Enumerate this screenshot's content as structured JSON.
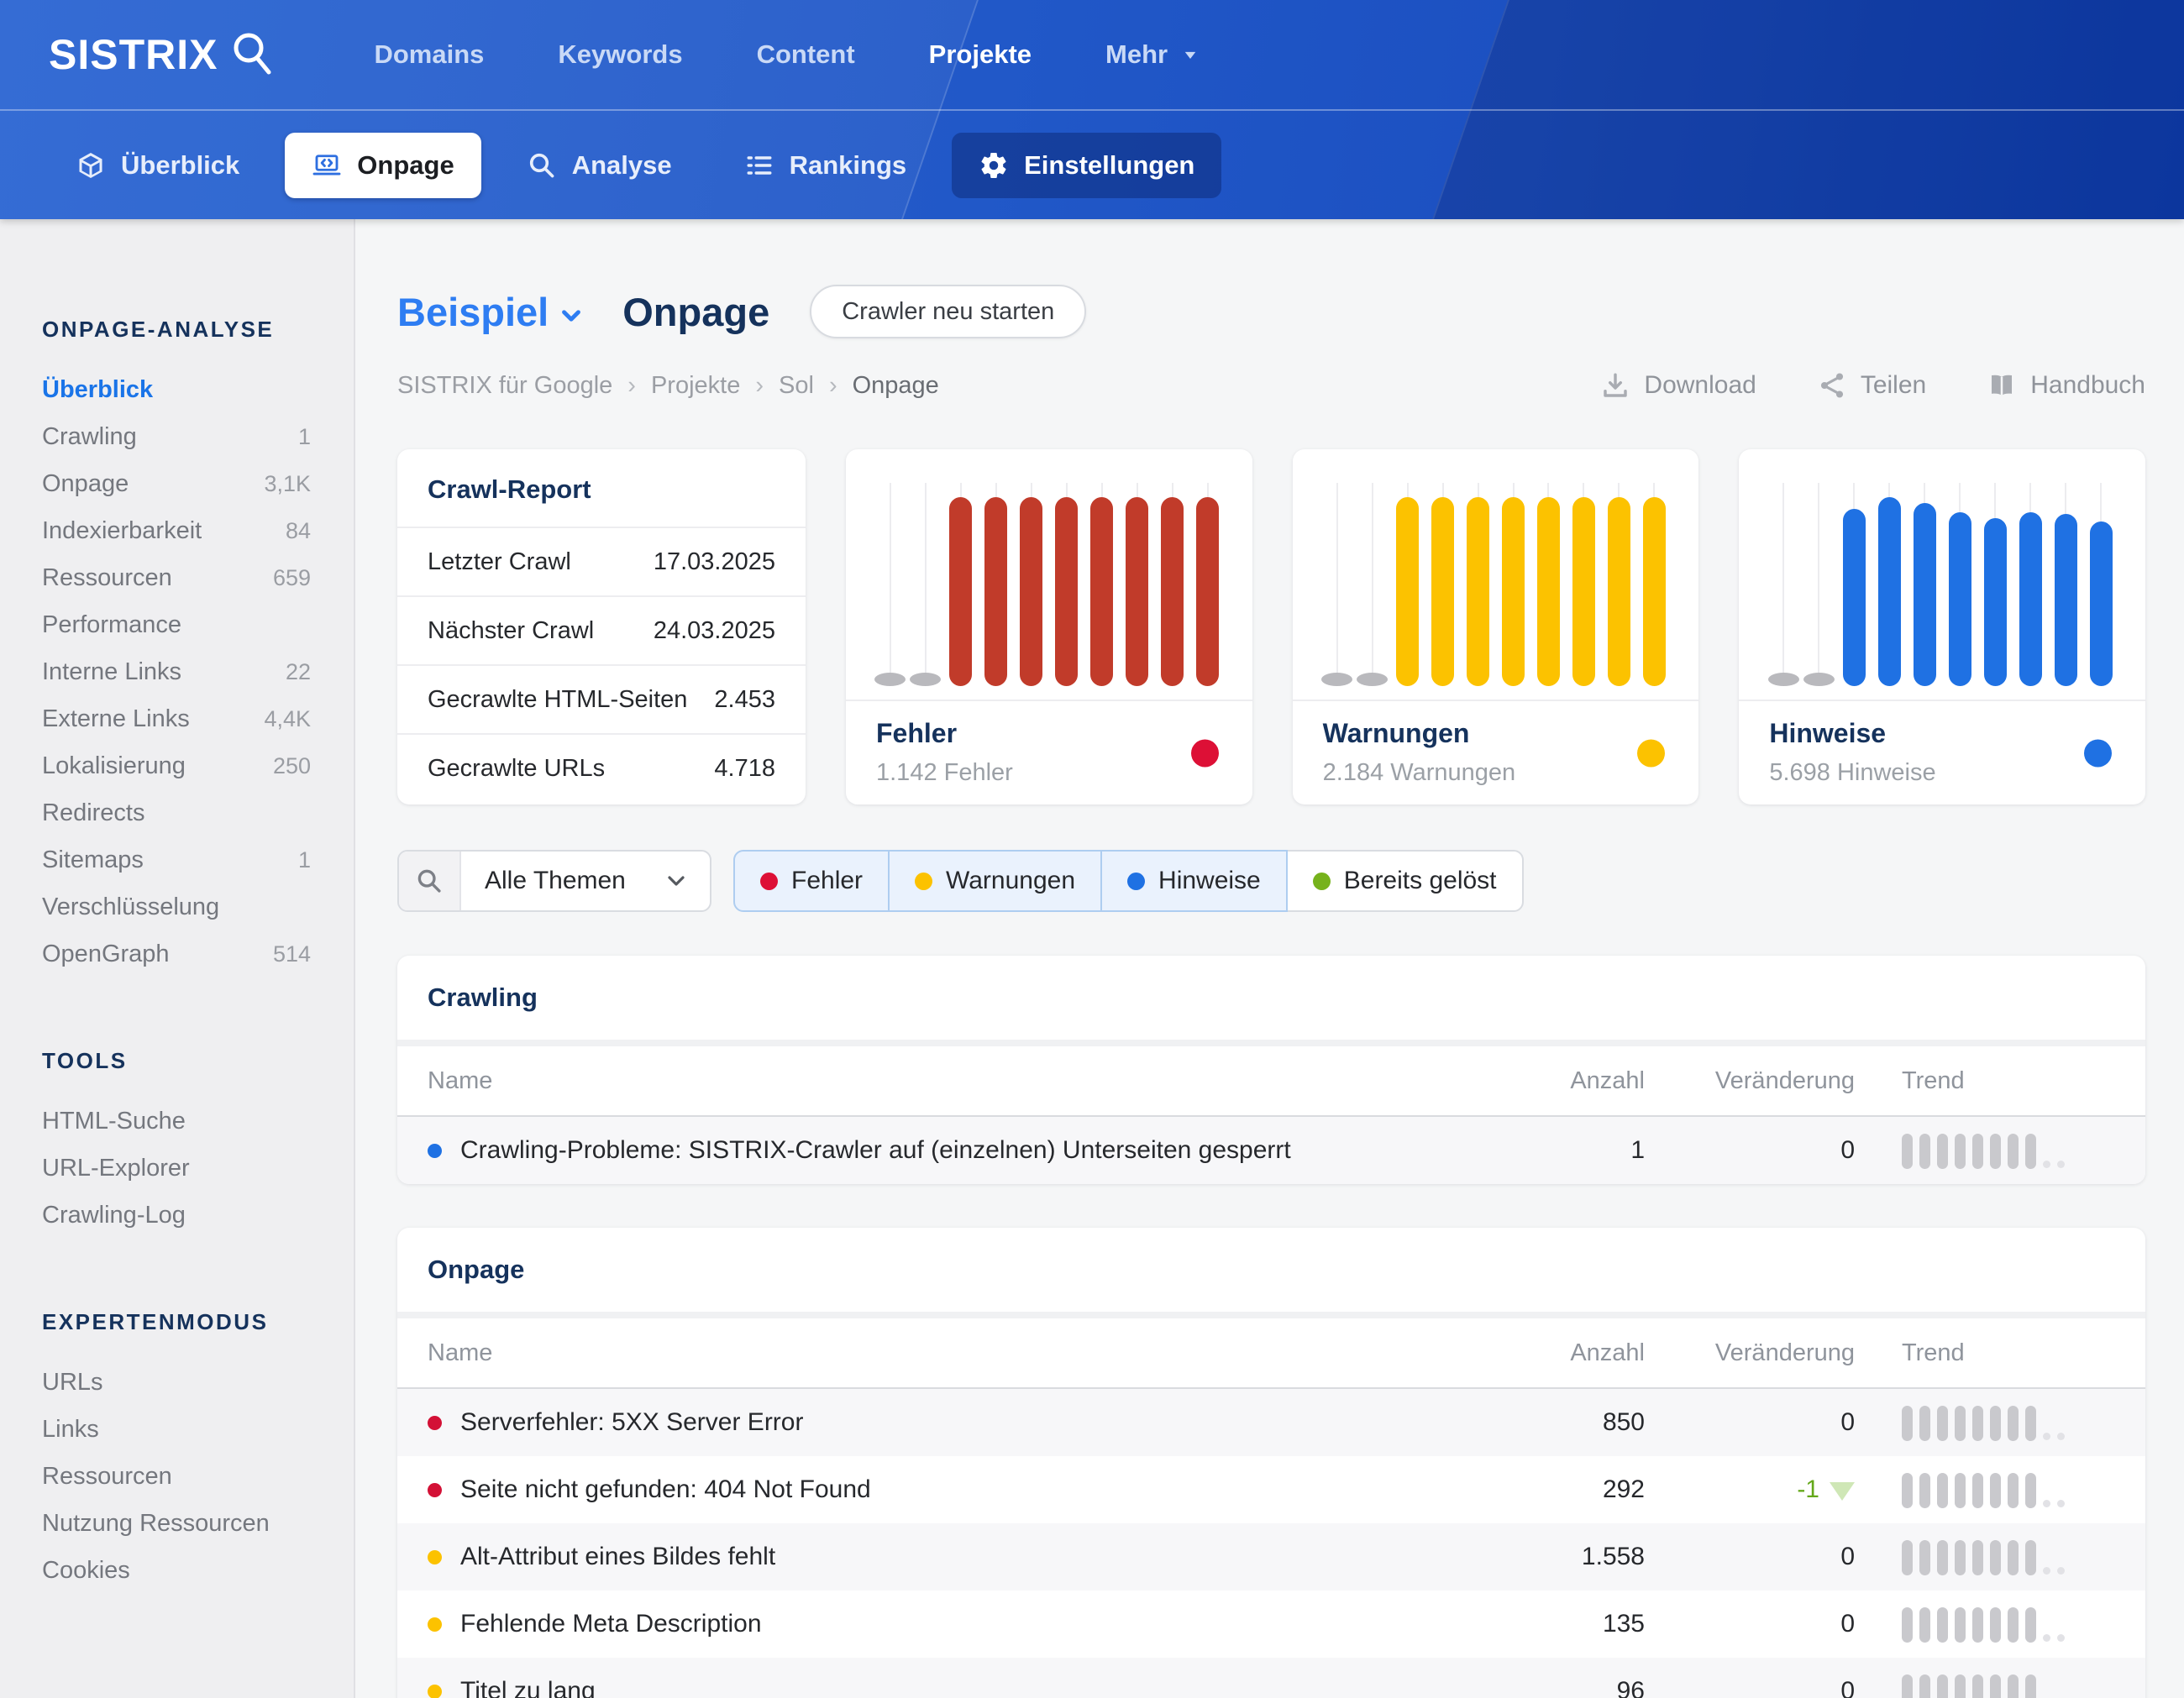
{
  "topnav": {
    "logo": "SISTRIX",
    "items": [
      {
        "label": "Domains",
        "active": false
      },
      {
        "label": "Keywords",
        "active": false
      },
      {
        "label": "Content",
        "active": false
      },
      {
        "label": "Projekte",
        "active": true
      },
      {
        "label": "Mehr",
        "active": false,
        "caret": true
      }
    ]
  },
  "subnav": {
    "items": [
      {
        "label": "Überblick",
        "icon": "box-icon",
        "style": "plain"
      },
      {
        "label": "Onpage",
        "icon": "laptop-code-icon",
        "style": "active-light"
      },
      {
        "label": "Analyse",
        "icon": "search-icon",
        "style": "plain"
      },
      {
        "label": "Rankings",
        "icon": "ranking-list-icon",
        "style": "plain"
      },
      {
        "label": "Einstellungen",
        "icon": "gear-icon",
        "style": "active-dark"
      }
    ]
  },
  "sidebar": {
    "sections": [
      {
        "title": "ONPAGE-ANALYSE",
        "items": [
          {
            "label": "Überblick",
            "count": "",
            "active": true
          },
          {
            "label": "Crawling",
            "count": "1",
            "active": false
          },
          {
            "label": "Onpage",
            "count": "3,1K",
            "active": false
          },
          {
            "label": "Indexierbarkeit",
            "count": "84",
            "active": false
          },
          {
            "label": "Ressourcen",
            "count": "659",
            "active": false
          },
          {
            "label": "Performance",
            "count": "",
            "active": false
          },
          {
            "label": "Interne Links",
            "count": "22",
            "active": false
          },
          {
            "label": "Externe Links",
            "count": "4,4K",
            "active": false
          },
          {
            "label": "Lokalisierung",
            "count": "250",
            "active": false
          },
          {
            "label": "Redirects",
            "count": "",
            "active": false
          },
          {
            "label": "Sitemaps",
            "count": "1",
            "active": false
          },
          {
            "label": "Verschlüsselung",
            "count": "",
            "active": false
          },
          {
            "label": "OpenGraph",
            "count": "514",
            "active": false
          }
        ]
      },
      {
        "title": "TOOLS",
        "items": [
          {
            "label": "HTML-Suche",
            "count": "",
            "active": false
          },
          {
            "label": "URL-Explorer",
            "count": "",
            "active": false
          },
          {
            "label": "Crawling-Log",
            "count": "",
            "active": false
          }
        ]
      },
      {
        "title": "EXPERTENMODUS",
        "items": [
          {
            "label": "URLs",
            "count": "",
            "active": false
          },
          {
            "label": "Links",
            "count": "",
            "active": false
          },
          {
            "label": "Ressourcen",
            "count": "",
            "active": false
          },
          {
            "label": "Nutzung Ressourcen",
            "count": "",
            "active": false
          },
          {
            "label": "Cookies",
            "count": "",
            "active": false
          }
        ]
      }
    ]
  },
  "page": {
    "project": "Beispiel",
    "title": "Onpage",
    "restart_button": "Crawler neu starten",
    "breadcrumb": [
      "SISTRIX für Google",
      "Projekte",
      "Sol",
      "Onpage"
    ],
    "actions": [
      {
        "label": "Download",
        "icon": "download-icon"
      },
      {
        "label": "Teilen",
        "icon": "share-icon"
      },
      {
        "label": "Handbuch",
        "icon": "book-icon"
      }
    ]
  },
  "crawl_report": {
    "title": "Crawl-Report",
    "rows": [
      {
        "label": "Letzter Crawl",
        "value": "17.03.2025"
      },
      {
        "label": "Nächster Crawl",
        "value": "24.03.2025"
      },
      {
        "label": "Gecrawlte HTML-Seiten",
        "value": "2.453"
      },
      {
        "label": "Gecrawlte URLs",
        "value": "4.718"
      }
    ]
  },
  "stat_cards": [
    {
      "title": "Fehler",
      "subtitle": "1.142 Fehler",
      "bar_color": "#c13b2a",
      "dot_color": "#dd1036",
      "slots": [
        {
          "type": "dot"
        },
        {
          "type": "dot"
        },
        {
          "type": "bar",
          "h": 100
        },
        {
          "type": "bar",
          "h": 100
        },
        {
          "type": "bar",
          "h": 100
        },
        {
          "type": "bar",
          "h": 100
        },
        {
          "type": "bar",
          "h": 100
        },
        {
          "type": "bar",
          "h": 100
        },
        {
          "type": "bar",
          "h": 100
        },
        {
          "type": "bar",
          "h": 100
        }
      ]
    },
    {
      "title": "Warnungen",
      "subtitle": "2.184 Warnungen",
      "bar_color": "#fcc200",
      "dot_color": "#fcc200",
      "slots": [
        {
          "type": "dot"
        },
        {
          "type": "dot"
        },
        {
          "type": "bar",
          "h": 100
        },
        {
          "type": "bar",
          "h": 100
        },
        {
          "type": "bar",
          "h": 100
        },
        {
          "type": "bar",
          "h": 100
        },
        {
          "type": "bar",
          "h": 100
        },
        {
          "type": "bar",
          "h": 100
        },
        {
          "type": "bar",
          "h": 100
        },
        {
          "type": "bar",
          "h": 100
        }
      ]
    },
    {
      "title": "Hinweise",
      "subtitle": "5.698 Hinweise",
      "bar_color": "#1f71e3",
      "dot_color": "#1f71e3",
      "slots": [
        {
          "type": "dot"
        },
        {
          "type": "dot"
        },
        {
          "type": "bar",
          "h": 94
        },
        {
          "type": "bar",
          "h": 100
        },
        {
          "type": "bar",
          "h": 97
        },
        {
          "type": "bar",
          "h": 92
        },
        {
          "type": "bar",
          "h": 89
        },
        {
          "type": "bar",
          "h": 92
        },
        {
          "type": "bar",
          "h": 91
        },
        {
          "type": "bar",
          "h": 87
        }
      ]
    }
  ],
  "filter": {
    "select": {
      "label": "Alle Themen",
      "icon": "search-icon"
    },
    "chips": [
      {
        "label": "Fehler",
        "color": "#dd1036",
        "selected": true
      },
      {
        "label": "Warnungen",
        "color": "#fcc200",
        "selected": true
      },
      {
        "label": "Hinweise",
        "color": "#1f71e3",
        "selected": true
      },
      {
        "label": "Bereits gelöst",
        "color": "#76b21c",
        "selected": false
      }
    ]
  },
  "sections": [
    {
      "title": "Crawling",
      "columns": [
        "Name",
        "Anzahl",
        "Veränderung",
        "Trend"
      ],
      "rows": [
        {
          "dot": "#1f71e3",
          "name": "Crawling-Probleme: SISTRIX-Crawler auf (einzelnen) Unterseiten gesperrt",
          "anzahl": "1",
          "change": "0",
          "change_dir": ""
        }
      ]
    },
    {
      "title": "Onpage",
      "columns": [
        "Name",
        "Anzahl",
        "Veränderung",
        "Trend"
      ],
      "rows": [
        {
          "dot": "#d31136",
          "name": "Serverfehler: 5XX Server Error",
          "anzahl": "850",
          "change": "0",
          "change_dir": ""
        },
        {
          "dot": "#d31136",
          "name": "Seite nicht gefunden: 404 Not Found",
          "anzahl": "292",
          "change": "-1",
          "change_dir": "down",
          "change_color": "#64a81a"
        },
        {
          "dot": "#fcc200",
          "name": "Alt-Attribut eines Bildes fehlt",
          "anzahl": "1.558",
          "change": "0",
          "change_dir": ""
        },
        {
          "dot": "#fcc200",
          "name": "Fehlende Meta Description",
          "anzahl": "135",
          "change": "0",
          "change_dir": ""
        },
        {
          "dot": "#fcc200",
          "name": "Titel zu lang",
          "anzahl": "96",
          "change": "0",
          "change_dir": ""
        }
      ]
    }
  ],
  "trend_pattern": {
    "bars": 8,
    "trailing_dots": 2
  }
}
